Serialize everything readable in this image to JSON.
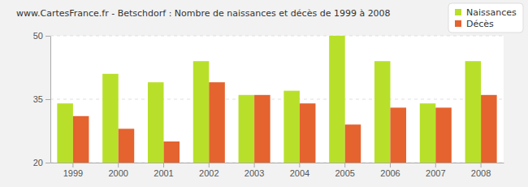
{
  "chart_data": {
    "type": "bar",
    "title": "www.CartesFrance.fr - Betschdorf : Nombre de naissances et décès de 1999 à 2008",
    "categories": [
      "1999",
      "2000",
      "2001",
      "2002",
      "2003",
      "2004",
      "2005",
      "2006",
      "2007",
      "2008"
    ],
    "series": [
      {
        "name": "Naissances",
        "color": "#b8e02a",
        "values": [
          34,
          41,
          39,
          44,
          36,
          37,
          50,
          44,
          34,
          44
        ]
      },
      {
        "name": "Décès",
        "color": "#e4632f",
        "values": [
          31,
          28,
          25,
          39,
          36,
          34,
          29,
          33,
          33,
          36
        ]
      }
    ],
    "ylim": [
      20,
      50
    ],
    "yticks": [
      20,
      35,
      50
    ],
    "grid": true,
    "legend": "top-right"
  }
}
